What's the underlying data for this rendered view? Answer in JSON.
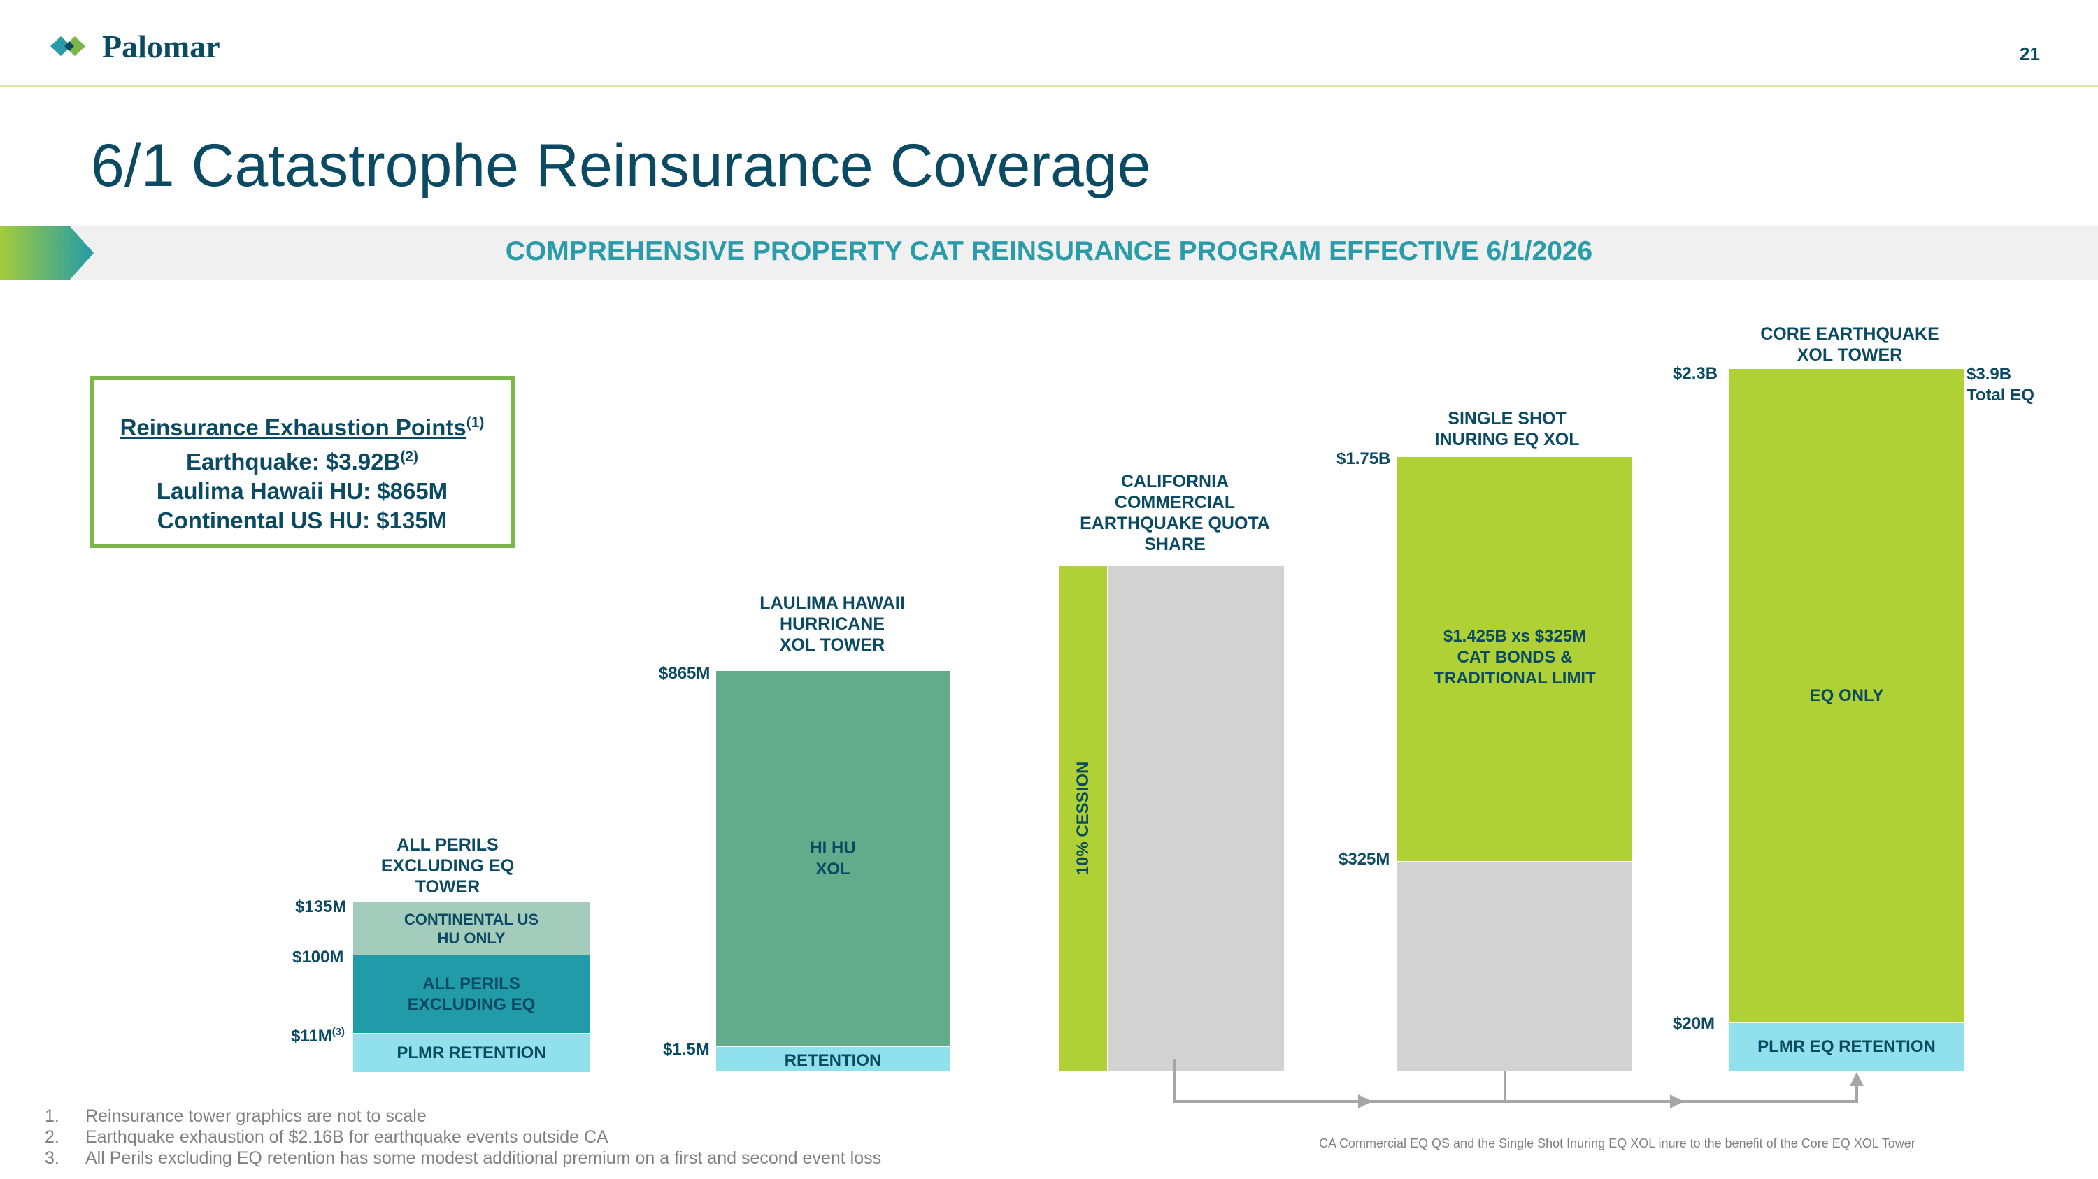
{
  "header": {
    "logo_text": "Palomar",
    "page_number": "21"
  },
  "title": "6/1 Catastrophe Reinsurance Coverage",
  "banner": "COMPREHENSIVE PROPERTY CAT REINSURANCE PROGRAM EFFECTIVE 6/1/2026",
  "exhaustion_box": {
    "heading": "Reinsurance Exhaustion Points",
    "heading_sup": "(1)",
    "earthquake": "Earthquake: $3.92B",
    "earthquake_sup": "(2)",
    "hawaii": "Laulima Hawaii HU: $865M",
    "continental": "Continental US HU: $135M"
  },
  "towers": {
    "all_perils": {
      "title_lines": [
        "ALL PERILS",
        "EXCLUDING EQ",
        "TOWER"
      ],
      "seg_continental": [
        "CONTINENTAL US",
        "HU ONLY"
      ],
      "seg_all_perils": [
        "ALL PERILS",
        "EXCLUDING EQ"
      ],
      "seg_retention": "PLMR RETENTION",
      "label_top": "$135M",
      "label_mid": "$100M",
      "label_bottom": "$11M",
      "label_bottom_sup": "(3)"
    },
    "hawaii": {
      "title_lines": [
        "LAULIMA HAWAII",
        "HURRICANE",
        "XOL TOWER"
      ],
      "seg_main": [
        "HI HU",
        "XOL"
      ],
      "seg_retention": "RETENTION",
      "label_top": "$865M",
      "label_bottom": "$1.5M"
    },
    "california": {
      "title_lines": [
        "CALIFORNIA",
        "COMMERCIAL",
        "EARTHQUAKE QUOTA",
        "SHARE"
      ],
      "cession": "10% CESSION"
    },
    "single_shot": {
      "title_lines": [
        "SINGLE SHOT",
        "INURING EQ XOL"
      ],
      "seg_main": [
        "$1.425B xs $325M",
        "CAT BONDS &",
        "TRADITIONAL LIMIT"
      ],
      "label_top": "$1.75B",
      "label_mid": "$325M"
    },
    "core_eq": {
      "title_lines": [
        "CORE EARTHQUAKE",
        "XOL TOWER"
      ],
      "seg_main": "EQ ONLY",
      "seg_retention": "PLMR EQ RETENTION",
      "label_top": "$2.3B",
      "label_bottom": "$20M",
      "total_lines": [
        "$3.9B",
        "Total EQ"
      ]
    }
  },
  "colors": {
    "navy": "#0b4a63",
    "teal": "#2a9ca9",
    "light_green": "#afd136",
    "medium_green": "#62ac8c",
    "sage": "#a3ccbd",
    "dark_teal": "#229ba9",
    "light_cyan": "#90e1ec",
    "gray": "#d2d2d2",
    "box_border": "#7ab648"
  },
  "footnotes": [
    {
      "num": "1.",
      "text": "Reinsurance tower graphics are not to scale"
    },
    {
      "num": "2.",
      "text": "Earthquake exhaustion of $2.16B for earthquake events outside CA"
    },
    {
      "num": "3.",
      "text": "All Perils excluding EQ retention has some modest additional premium on a first and second event loss"
    }
  ],
  "flow_note": "CA Commercial EQ QS and the Single Shot Inuring EQ XOL inure to the benefit of the Core EQ XOL Tower"
}
